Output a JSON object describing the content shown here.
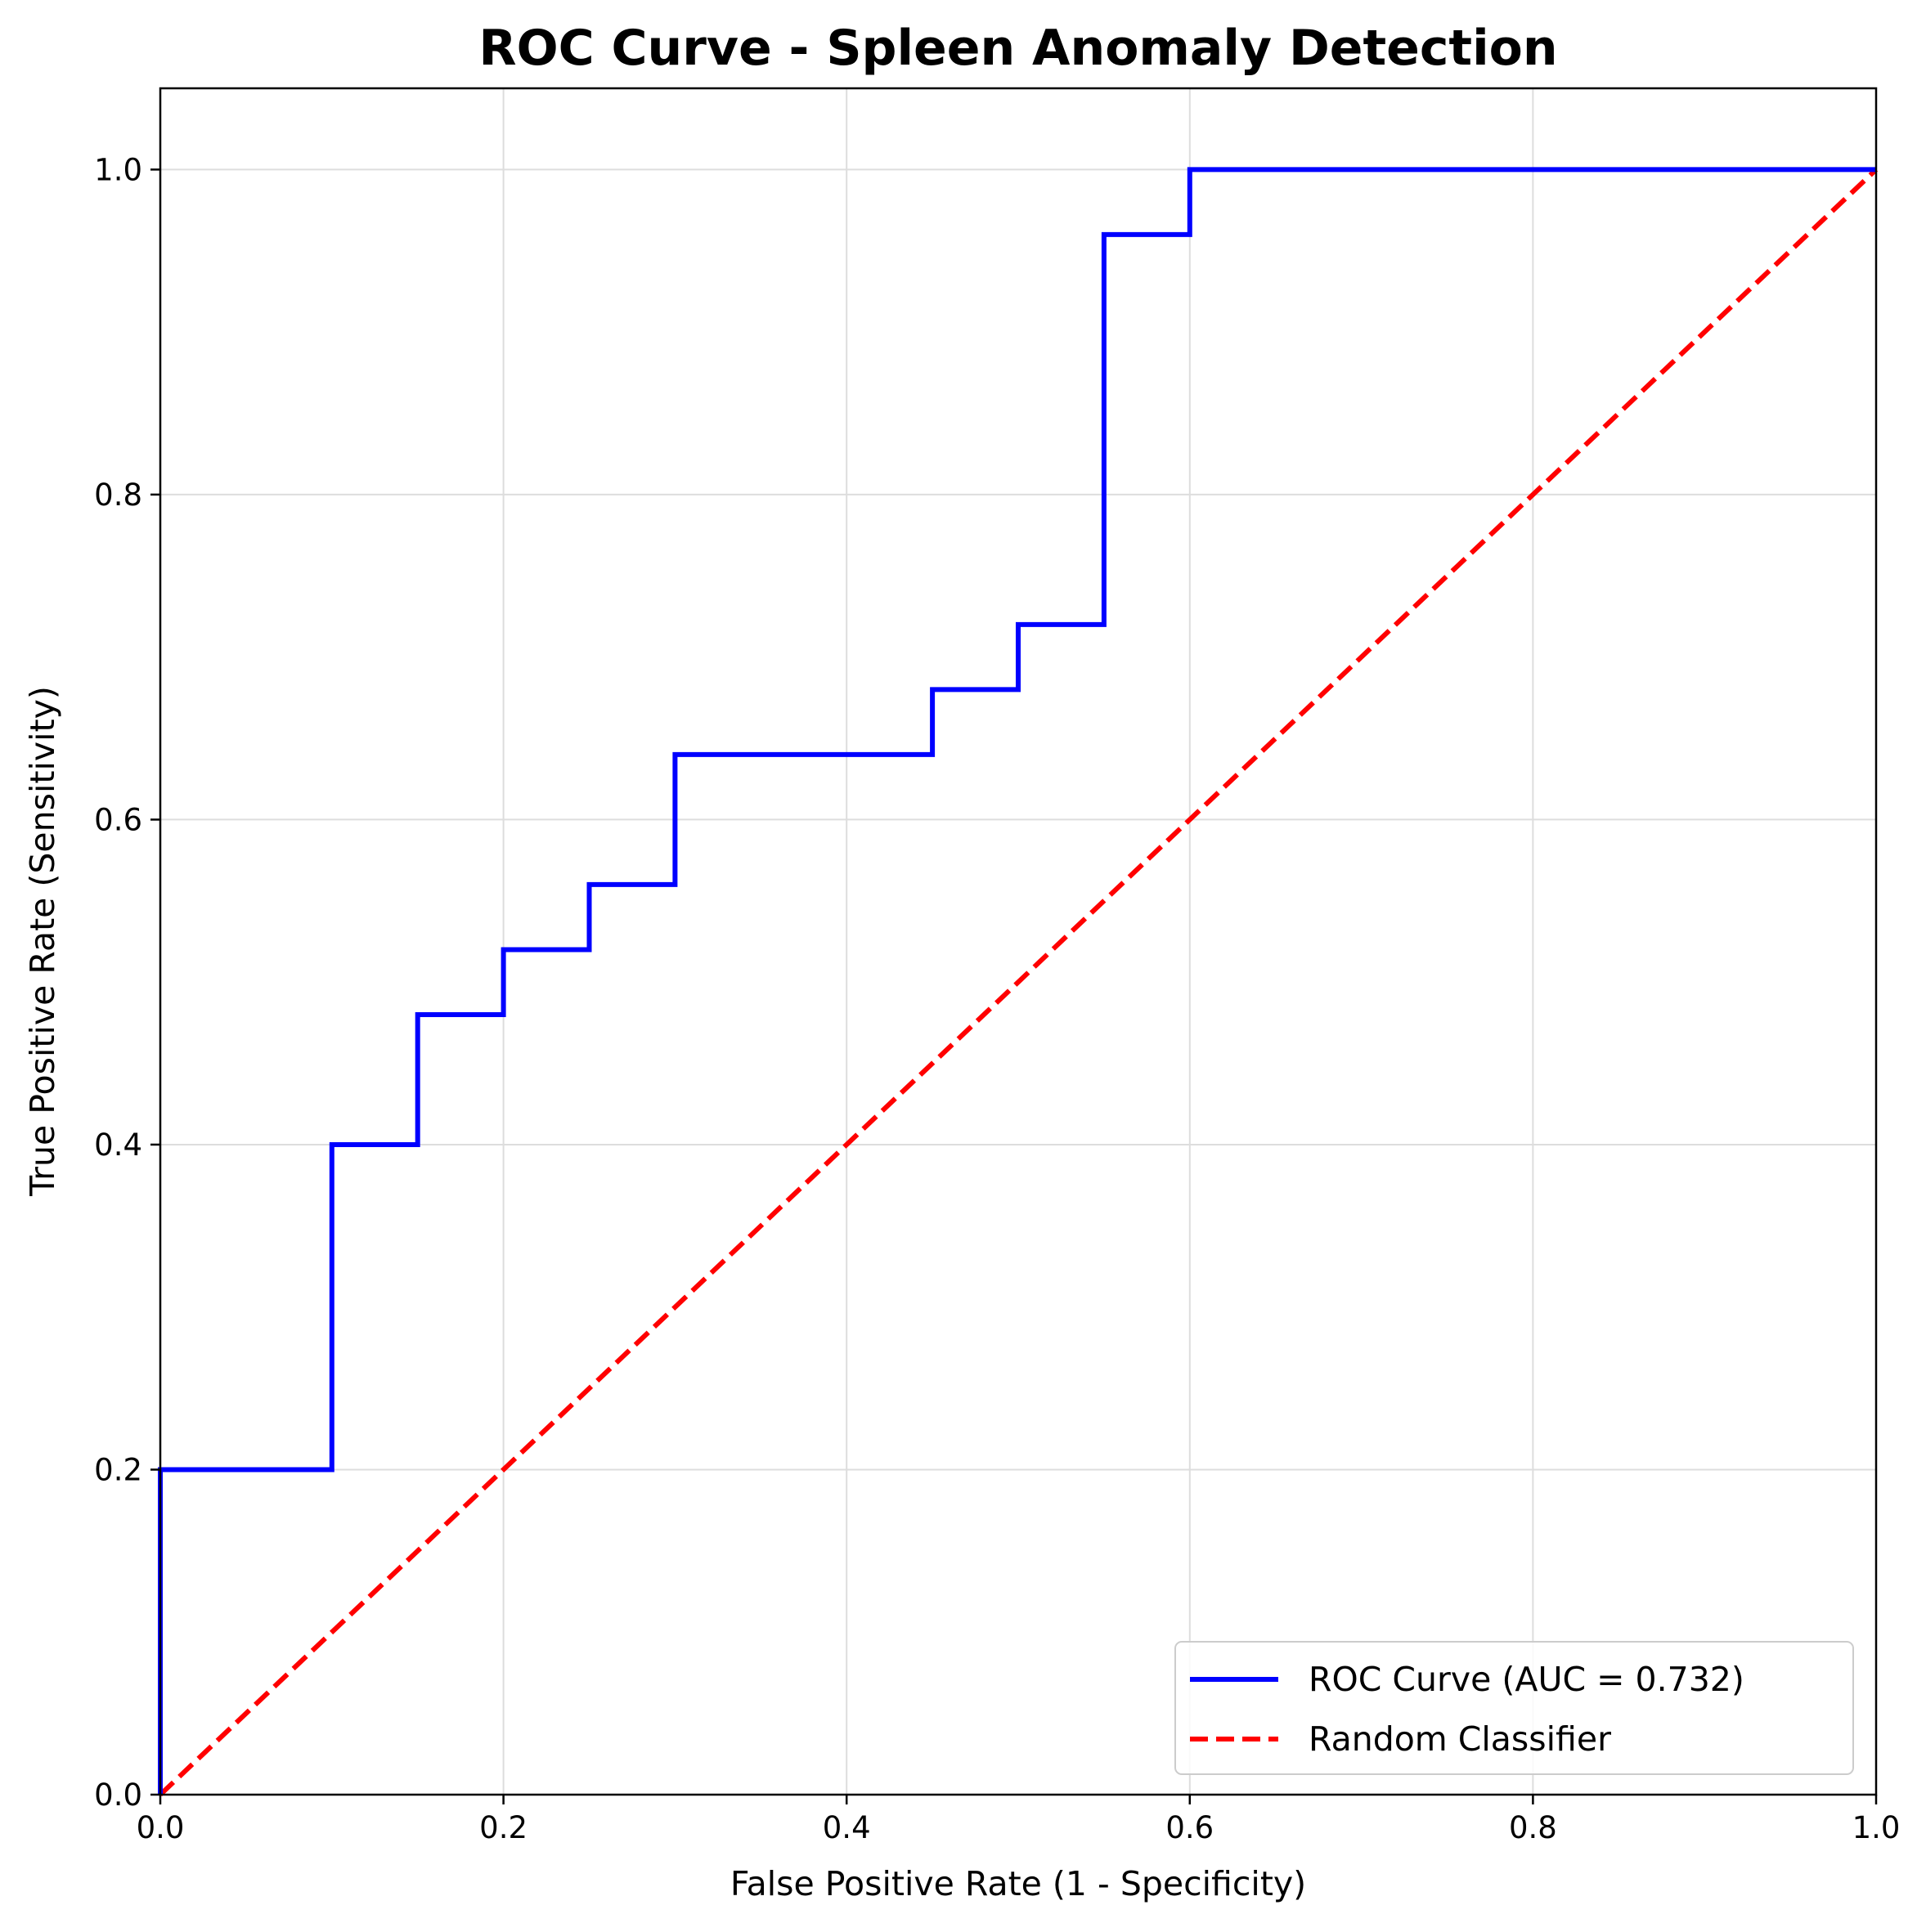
{
  "chart_data": {
    "type": "line",
    "title": "ROC Curve - Spleen Anomaly Detection",
    "xlabel": "False Positive Rate (1 - Specificity)",
    "ylabel": "True Positive Rate (Sensitivity)",
    "xlim": [
      0,
      1
    ],
    "ylim": [
      0,
      1.05
    ],
    "xticks": [
      "0.0",
      "0.2",
      "0.4",
      "0.6",
      "0.8",
      "1.0"
    ],
    "yticks": [
      "0.0",
      "0.2",
      "0.4",
      "0.6",
      "0.8",
      "1.0"
    ],
    "grid": true,
    "legend_position": "lower-right",
    "series": [
      {
        "name": "ROC Curve (AUC = 0.732)",
        "color": "#0000ff",
        "style": "solid-step",
        "x": [
          0.0,
          0.0,
          0.1,
          0.1,
          0.15,
          0.15,
          0.2,
          0.2,
          0.25,
          0.25,
          0.3,
          0.3,
          0.45,
          0.45,
          0.5,
          0.5,
          0.55,
          0.55,
          0.6,
          0.6,
          1.0
        ],
        "y": [
          0.0,
          0.2,
          0.2,
          0.4,
          0.4,
          0.48,
          0.48,
          0.52,
          0.52,
          0.56,
          0.56,
          0.64,
          0.64,
          0.68,
          0.68,
          0.72,
          0.72,
          0.96,
          0.96,
          1.0,
          1.0
        ]
      },
      {
        "name": "Random Classifier",
        "color": "#ff0000",
        "style": "dashed",
        "x": [
          0,
          1
        ],
        "y": [
          0,
          1
        ]
      }
    ]
  }
}
